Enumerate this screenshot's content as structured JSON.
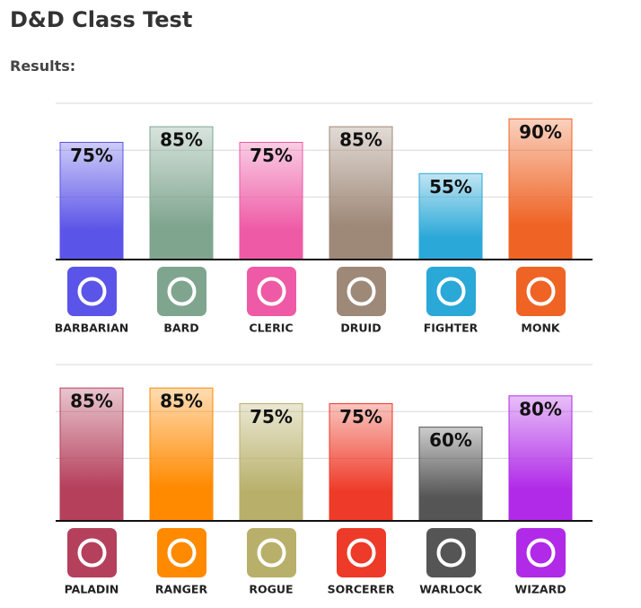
{
  "header": {
    "title": "D&D Class Test",
    "subtitle": "Results:"
  },
  "chart_data": [
    {
      "type": "bar",
      "categories": [
        "BARBARIAN",
        "BARD",
        "CLERIC",
        "DRUID",
        "FIGHTER",
        "MONK"
      ],
      "values": [
        75,
        85,
        75,
        85,
        55,
        90
      ],
      "value_labels": [
        "75%",
        "85%",
        "75%",
        "85%",
        "55%",
        "90%"
      ],
      "colors": [
        "#5b54e8",
        "#7fa58f",
        "#ee5aa6",
        "#9e8877",
        "#2aa8d8",
        "#ef6425"
      ],
      "ylim": [
        0,
        100
      ],
      "yticks": [
        40,
        70,
        100
      ],
      "grid": true
    },
    {
      "type": "bar",
      "categories": [
        "PALADIN",
        "RANGER",
        "ROGUE",
        "SORCERER",
        "WARLOCK",
        "WIZARD"
      ],
      "values": [
        85,
        85,
        75,
        75,
        60,
        80
      ],
      "value_labels": [
        "85%",
        "85%",
        "75%",
        "75%",
        "60%",
        "80%"
      ],
      "colors": [
        "#b5405c",
        "#ff8a00",
        "#b8b06a",
        "#ee3a28",
        "#555555",
        "#b02ae8"
      ],
      "ylim": [
        0,
        100
      ],
      "yticks": [
        40,
        70,
        100
      ],
      "grid": true
    }
  ]
}
